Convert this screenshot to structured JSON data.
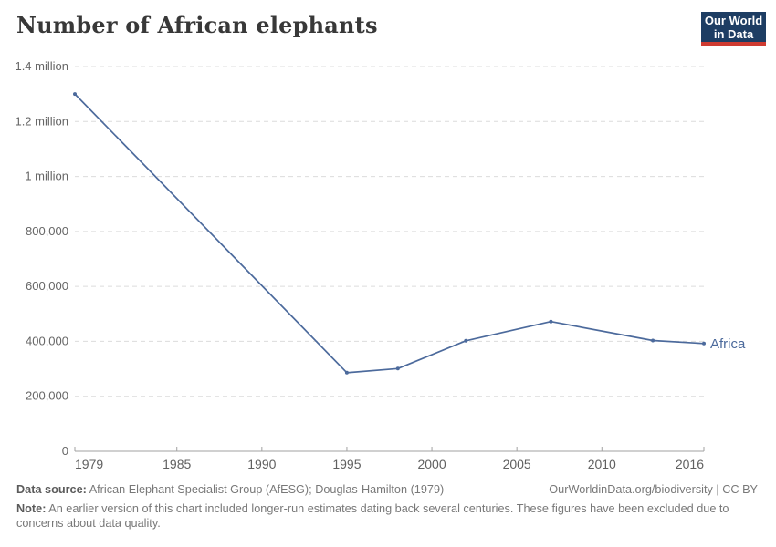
{
  "header": {
    "title": "Number of African elephants",
    "logo": {
      "line1": "Our World",
      "line2": "in Data"
    }
  },
  "chart_data": {
    "type": "line",
    "title": "Number of African elephants",
    "xlabel": "",
    "ylabel": "",
    "xlim": [
      1979,
      2016
    ],
    "ylim": [
      0,
      1400000
    ],
    "grid": "horizontal-dashed",
    "legend_position": "inline-end-of-line",
    "x_ticks": [
      {
        "v": 1979,
        "label": "1979"
      },
      {
        "v": 1985,
        "label": "1985"
      },
      {
        "v": 1990,
        "label": "1990"
      },
      {
        "v": 1995,
        "label": "1995"
      },
      {
        "v": 2000,
        "label": "2000"
      },
      {
        "v": 2005,
        "label": "2005"
      },
      {
        "v": 2010,
        "label": "2010"
      },
      {
        "v": 2016,
        "label": "2016"
      }
    ],
    "y_ticks": [
      {
        "v": 0,
        "label": "0"
      },
      {
        "v": 200000,
        "label": "200,000"
      },
      {
        "v": 400000,
        "label": "400,000"
      },
      {
        "v": 600000,
        "label": "600,000"
      },
      {
        "v": 800000,
        "label": "800,000"
      },
      {
        "v": 1000000,
        "label": "1 million"
      },
      {
        "v": 1200000,
        "label": "1.2 million"
      },
      {
        "v": 1400000,
        "label": "1.4 million"
      }
    ],
    "series": [
      {
        "name": "Africa",
        "color": "#4C6A9C",
        "points": [
          [
            1979,
            1300000
          ],
          [
            1995,
            286000
          ],
          [
            1998,
            301000
          ],
          [
            2002,
            402000
          ],
          [
            2007,
            472000
          ],
          [
            2013,
            403000
          ],
          [
            2016,
            392000
          ]
        ]
      }
    ]
  },
  "footer": {
    "source_label": "Data source:",
    "source_text": "African Elephant Specialist Group (AfESG); Douglas-Hamilton (1979)",
    "attribution": "OurWorldinData.org/biodiversity | CC BY",
    "note_label": "Note:",
    "note_text": "An earlier version of this chart included longer-run estimates dating back several centuries. These figures have been excluded due to concerns about data quality."
  },
  "colors": {
    "series_blue": "#4C6A9C",
    "logo_navy": "#1d3d63",
    "logo_red": "#cf3b31",
    "grid_gray": "#dcdcdc",
    "axis_gray": "#a1a1a1"
  }
}
